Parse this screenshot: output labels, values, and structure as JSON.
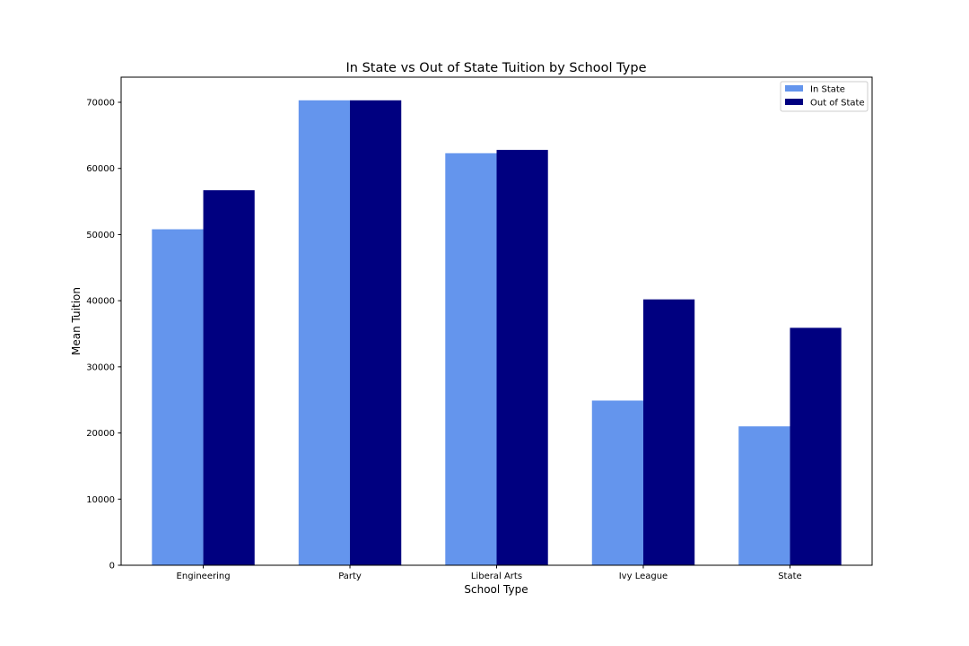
{
  "chart_data": {
    "type": "bar",
    "title": "In State vs Out of State Tuition by School Type",
    "xlabel": "School Type",
    "ylabel": "Mean Tuition",
    "categories": [
      "Engineering",
      "Party",
      "Liberal Arts",
      "Ivy League",
      "State"
    ],
    "series": [
      {
        "name": "In State",
        "color": "#6495ED",
        "values": [
          50800,
          70300,
          62300,
          24900,
          21000
        ]
      },
      {
        "name": "Out of State",
        "color": "#000080",
        "values": [
          56700,
          70300,
          62800,
          40200,
          35900
        ]
      }
    ],
    "ylim": [
      0,
      73800
    ],
    "yticks": [
      0,
      10000,
      20000,
      30000,
      40000,
      50000,
      60000,
      70000
    ],
    "ytick_labels": [
      "0",
      "10000",
      "20000",
      "30000",
      "40000",
      "50000",
      "60000",
      "70000"
    ],
    "grid": false,
    "legend_position": "top-right"
  }
}
